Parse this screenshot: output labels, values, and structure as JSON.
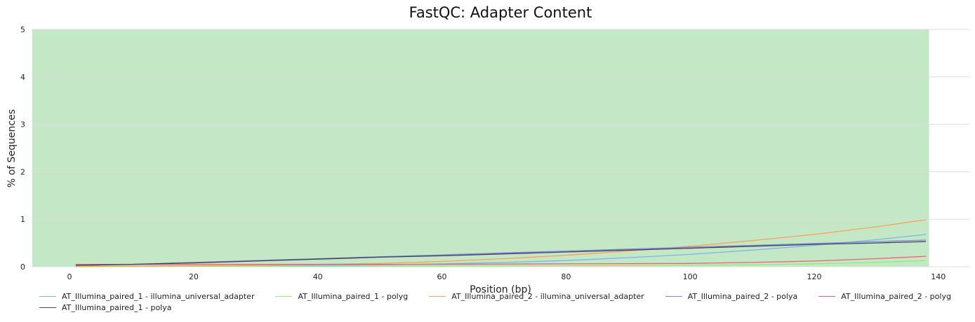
{
  "chart_data": {
    "type": "line",
    "title": "FastQC: Adapter Content",
    "xlabel": "Position (bp)",
    "ylabel": "% of Sequences",
    "xlim": [
      -6,
      145
    ],
    "ylim": [
      0,
      5
    ],
    "xticks": [
      0,
      20,
      40,
      60,
      80,
      100,
      120,
      140
    ],
    "yticks": [
      0,
      1,
      2,
      3,
      4,
      5
    ],
    "grid": "horizontal",
    "legend_position": "bottom",
    "background_band": {
      "from": 0,
      "to": 5,
      "x_to": 138.5,
      "color": "#c4e7c5"
    },
    "series": [
      {
        "name": "AT_Illumina_paired_1 - illumina_universal_adapter",
        "color": "#7cb5ec",
        "x": [
          1,
          10,
          20,
          30,
          40,
          50,
          60,
          70,
          80,
          90,
          100,
          110,
          120,
          130,
          138
        ],
        "y": [
          0.01,
          0.01,
          0.02,
          0.02,
          0.03,
          0.04,
          0.06,
          0.09,
          0.13,
          0.19,
          0.26,
          0.35,
          0.45,
          0.57,
          0.68
        ]
      },
      {
        "name": "AT_Illumina_paired_1 - polyg",
        "color": "#90ed7d",
        "x": [
          1,
          20,
          40,
          60,
          80,
          100,
          110,
          120,
          130,
          138
        ],
        "y": [
          0.0,
          0.01,
          0.01,
          0.01,
          0.02,
          0.03,
          0.04,
          0.06,
          0.09,
          0.13
        ]
      },
      {
        "name": "AT_Illumina_paired_2 - illumina_universal_adapter",
        "color": "#f7a35c",
        "x": [
          1,
          10,
          20,
          30,
          40,
          50,
          60,
          70,
          80,
          90,
          100,
          110,
          120,
          130,
          138
        ],
        "y": [
          0.01,
          0.01,
          0.02,
          0.03,
          0.05,
          0.07,
          0.11,
          0.17,
          0.24,
          0.33,
          0.43,
          0.55,
          0.68,
          0.84,
          0.99
        ]
      },
      {
        "name": "AT_Illumina_paired_2 - polya",
        "color": "#8085e9",
        "x": [
          1,
          10,
          20,
          30,
          40,
          50,
          60,
          70,
          80,
          90,
          100,
          110,
          120,
          130,
          138
        ],
        "y": [
          0.03,
          0.05,
          0.09,
          0.13,
          0.17,
          0.21,
          0.25,
          0.29,
          0.33,
          0.37,
          0.41,
          0.45,
          0.49,
          0.53,
          0.56
        ]
      },
      {
        "name": "AT_Illumina_paired_2 - polyg",
        "color": "#f15c80",
        "x": [
          1,
          20,
          40,
          60,
          80,
          100,
          110,
          120,
          130,
          138
        ],
        "y": [
          0.05,
          0.05,
          0.05,
          0.05,
          0.06,
          0.07,
          0.09,
          0.12,
          0.17,
          0.22
        ]
      },
      {
        "name": "AT_Illumina_paired_1 - polya",
        "color": "#434348",
        "x": [
          1,
          10,
          20,
          30,
          40,
          50,
          60,
          70,
          80,
          90,
          100,
          110,
          120,
          130,
          138
        ],
        "y": [
          0.03,
          0.05,
          0.08,
          0.12,
          0.16,
          0.2,
          0.23,
          0.27,
          0.31,
          0.35,
          0.39,
          0.43,
          0.47,
          0.5,
          0.53
        ]
      }
    ]
  }
}
